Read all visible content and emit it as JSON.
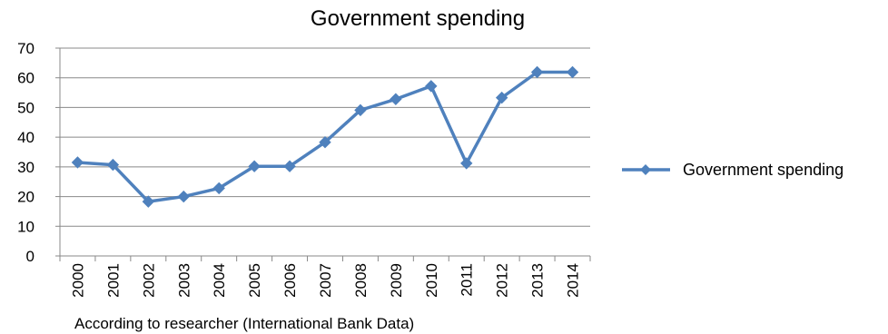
{
  "chart_data": {
    "type": "line",
    "title": "Government spending",
    "categories": [
      "2000",
      "2001",
      "2002",
      "2003",
      "2004",
      "2005",
      "2006",
      "2007",
      "2008",
      "2009",
      "2010",
      "2011",
      "2012",
      "2013",
      "2014"
    ],
    "series": [
      {
        "name": "Government spending",
        "values": [
          31.5,
          30.7,
          18.3,
          20.0,
          22.8,
          30.2,
          30.2,
          38.3,
          49.1,
          52.8,
          57.2,
          31.2,
          53.3,
          61.9,
          61.9
        ]
      }
    ],
    "ylim": [
      0,
      70
    ],
    "yticks": [
      0,
      10,
      20,
      30,
      40,
      50,
      60,
      70
    ],
    "grid": true,
    "legend_position": "right",
    "xlabel": "According to researcher (International Bank Data)",
    "ylabel": "",
    "colors": {
      "series": "#4F81BD",
      "grid": "#898989",
      "axis": "#898989"
    }
  }
}
